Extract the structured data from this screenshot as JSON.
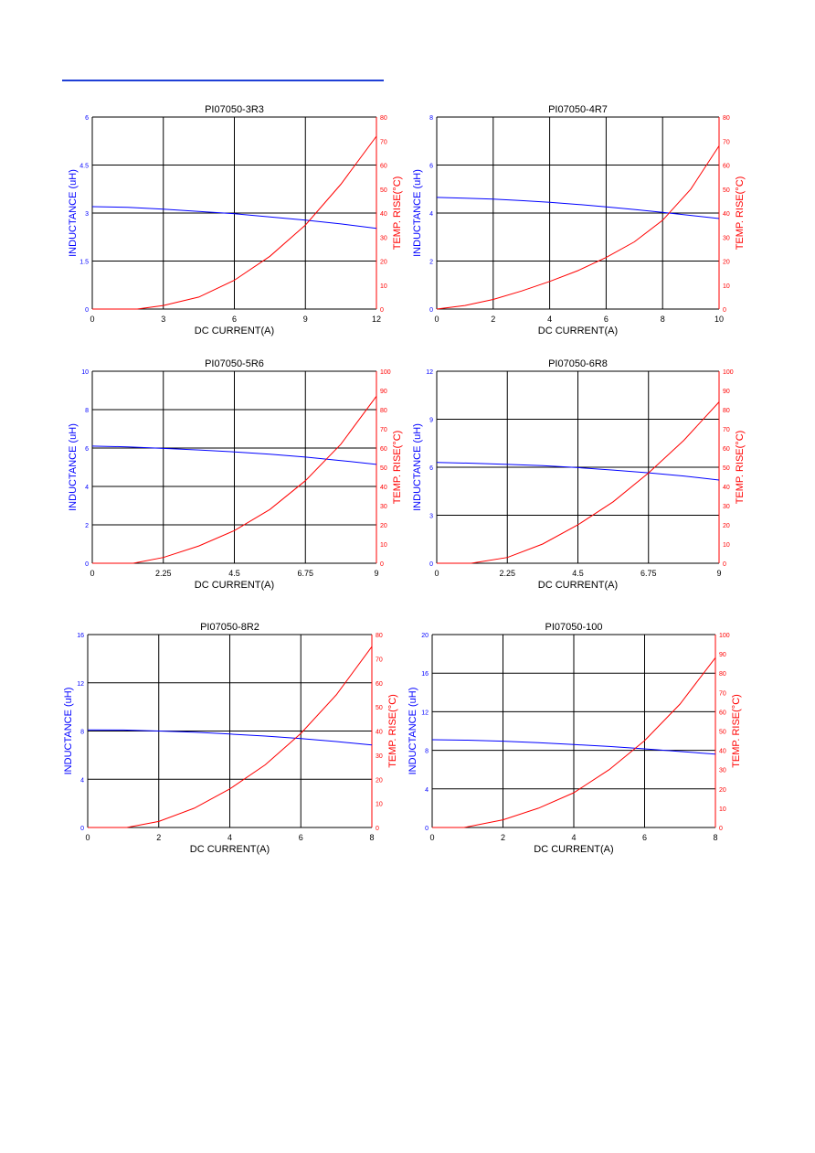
{
  "page": {
    "rule_color": "#1f3fd6"
  },
  "colors": {
    "inductance": "#0000ff",
    "temp_rise": "#ff0000",
    "grid": "#000000"
  },
  "chart_data": [
    {
      "type": "line",
      "title": "PI07050-3R3",
      "xlabel": "DC CURRENT(A)",
      "ylabel_left": "INDUCTANCE (uH)",
      "ylabel_right": "TEMP. RISE(°C)",
      "x_ticks": [
        "0",
        "3",
        "6",
        "9",
        "12"
      ],
      "xlim": [
        0,
        12
      ],
      "y_left_ticks": [
        "0",
        "1.5",
        "3",
        "4.5",
        "6"
      ],
      "ylim_left": [
        0,
        6
      ],
      "y_right_ticks": [
        "0",
        "10",
        "20",
        "30",
        "40",
        "50",
        "60",
        "70",
        "80"
      ],
      "ylim_right": [
        0,
        80
      ],
      "series": [
        {
          "axis": "left",
          "x": [
            0,
            1.5,
            3,
            4.5,
            6,
            7.5,
            9,
            10.5,
            12
          ],
          "y": [
            3.2,
            3.18,
            3.12,
            3.05,
            2.98,
            2.88,
            2.78,
            2.66,
            2.52
          ]
        },
        {
          "axis": "right",
          "x": [
            1.9,
            3,
            4.5,
            6,
            7.5,
            9,
            10.5,
            12
          ],
          "y": [
            0,
            1.5,
            5,
            12,
            22,
            35,
            52,
            72
          ]
        }
      ]
    },
    {
      "type": "line",
      "title": "PI07050-4R7",
      "xlabel": "DC CURRENT(A)",
      "ylabel_left": "INDUCTANCE (uH)",
      "ylabel_right": "TEMP. RISE(°C)",
      "x_ticks": [
        "0",
        "2",
        "4",
        "6",
        "8",
        "10"
      ],
      "xlim": [
        0,
        10
      ],
      "y_left_ticks": [
        "0",
        "2",
        "4",
        "6",
        "8"
      ],
      "ylim_left": [
        0,
        8
      ],
      "y_right_ticks": [
        "0",
        "10",
        "20",
        "30",
        "40",
        "50",
        "60",
        "70",
        "80"
      ],
      "ylim_right": [
        0,
        80
      ],
      "series": [
        {
          "axis": "left",
          "x": [
            0,
            1,
            2,
            3,
            4,
            5,
            6,
            7,
            8,
            9,
            10
          ],
          "y": [
            4.65,
            4.62,
            4.58,
            4.52,
            4.45,
            4.36,
            4.26,
            4.15,
            4.03,
            3.9,
            3.77
          ]
        },
        {
          "axis": "right",
          "x": [
            0,
            1,
            2,
            3,
            4,
            5,
            6,
            7,
            8,
            9,
            10
          ],
          "y": [
            0,
            1.5,
            4,
            7.5,
            11.5,
            16,
            21.5,
            28,
            37,
            50,
            68
          ]
        }
      ]
    },
    {
      "type": "line",
      "title": "PI07050-5R6",
      "xlabel": "DC CURRENT(A)",
      "ylabel_left": "INDUCTANCE (uH)",
      "ylabel_right": "TEMP. RISE(°C)",
      "x_ticks": [
        "0",
        "2.25",
        "4.5",
        "6.75",
        "9"
      ],
      "xlim": [
        0,
        9
      ],
      "y_left_ticks": [
        "0",
        "2",
        "4",
        "6",
        "8",
        "10"
      ],
      "ylim_left": [
        0,
        10
      ],
      "y_right_ticks": [
        "0",
        "10",
        "20",
        "30",
        "40",
        "50",
        "60",
        "70",
        "80",
        "90",
        "100"
      ],
      "ylim_right": [
        0,
        100
      ],
      "series": [
        {
          "axis": "left",
          "x": [
            0,
            1.125,
            2.25,
            3.375,
            4.5,
            5.625,
            6.75,
            7.875,
            9
          ],
          "y": [
            6.1,
            6.06,
            5.98,
            5.9,
            5.8,
            5.68,
            5.53,
            5.35,
            5.15
          ]
        },
        {
          "axis": "right",
          "x": [
            1.3,
            2.25,
            3.375,
            4.5,
            5.625,
            6.75,
            7.875,
            9
          ],
          "y": [
            0,
            3,
            9,
            17,
            28,
            43,
            62,
            87
          ]
        }
      ]
    },
    {
      "type": "line",
      "title": "PI07050-6R8",
      "xlabel": "DC CURRENT(A)",
      "ylabel_left": "INDUCTANCE (uH)",
      "ylabel_right": "TEMP. RISE(°C)",
      "x_ticks": [
        "0",
        "2.25",
        "4.5",
        "6.75",
        "9"
      ],
      "xlim": [
        0,
        9
      ],
      "y_left_ticks": [
        "0",
        "3",
        "6",
        "9",
        "12"
      ],
      "ylim_left": [
        0,
        12
      ],
      "y_right_ticks": [
        "0",
        "10",
        "20",
        "30",
        "40",
        "50",
        "60",
        "70",
        "80",
        "90",
        "100"
      ],
      "ylim_right": [
        0,
        100
      ],
      "series": [
        {
          "axis": "left",
          "x": [
            0,
            1.125,
            2.25,
            3.375,
            4.5,
            5.625,
            6.75,
            7.875,
            9
          ],
          "y": [
            6.3,
            6.25,
            6.18,
            6.1,
            5.98,
            5.82,
            5.65,
            5.45,
            5.2
          ]
        },
        {
          "axis": "right",
          "x": [
            1.1,
            2.25,
            3.375,
            4.5,
            5.625,
            6.75,
            7.875,
            9
          ],
          "y": [
            0,
            3,
            10,
            20,
            32,
            47,
            64,
            84
          ]
        }
      ]
    },
    {
      "type": "line",
      "title": "PI07050-8R2",
      "xlabel": "DC CURRENT(A)",
      "ylabel_left": "INDUCTANCE (uH)",
      "ylabel_right": "TEMP. RISE(°C)",
      "x_ticks": [
        "0",
        "2",
        "4",
        "6",
        "8"
      ],
      "xlim": [
        0,
        8
      ],
      "y_left_ticks": [
        "0",
        "4",
        "8",
        "12",
        "16"
      ],
      "ylim_left": [
        0,
        16
      ],
      "y_right_ticks": [
        "0",
        "10",
        "20",
        "30",
        "40",
        "50",
        "60",
        "70",
        "80"
      ],
      "ylim_right": [
        0,
        80
      ],
      "series": [
        {
          "axis": "left",
          "x": [
            0,
            1,
            2,
            3,
            4,
            5,
            6,
            7,
            8
          ],
          "y": [
            8.1,
            8.08,
            8.0,
            7.9,
            7.75,
            7.58,
            7.38,
            7.13,
            6.85
          ]
        },
        {
          "axis": "right",
          "x": [
            1.1,
            2,
            3,
            4,
            5,
            6,
            7,
            8
          ],
          "y": [
            0,
            2.5,
            8,
            16,
            26,
            39,
            55,
            75
          ]
        }
      ]
    },
    {
      "type": "line",
      "title": "PI07050-100",
      "xlabel": "DC CURRENT(A)",
      "ylabel_left": "INDUCTANCE (uH)",
      "ylabel_right": "TEMP. RISE(°C)",
      "x_ticks": [
        "0",
        "2",
        "4",
        "6",
        "8"
      ],
      "xlim": [
        0,
        8
      ],
      "y_left_ticks": [
        "0",
        "4",
        "8",
        "12",
        "16",
        "20"
      ],
      "ylim_left": [
        0,
        20
      ],
      "y_right_ticks": [
        "0",
        "10",
        "20",
        "30",
        "40",
        "50",
        "60",
        "70",
        "80",
        "90",
        "100"
      ],
      "ylim_right": [
        0,
        100
      ],
      "series": [
        {
          "axis": "left",
          "x": [
            0,
            1,
            2,
            3,
            4,
            5,
            6,
            7,
            8
          ],
          "y": [
            9.1,
            9.05,
            8.95,
            8.8,
            8.6,
            8.4,
            8.15,
            7.88,
            7.6
          ]
        },
        {
          "axis": "right",
          "x": [
            0.9,
            2,
            3,
            4,
            5,
            6,
            7,
            8
          ],
          "y": [
            0,
            4,
            10,
            18,
            30,
            45,
            64,
            88
          ]
        }
      ]
    }
  ]
}
